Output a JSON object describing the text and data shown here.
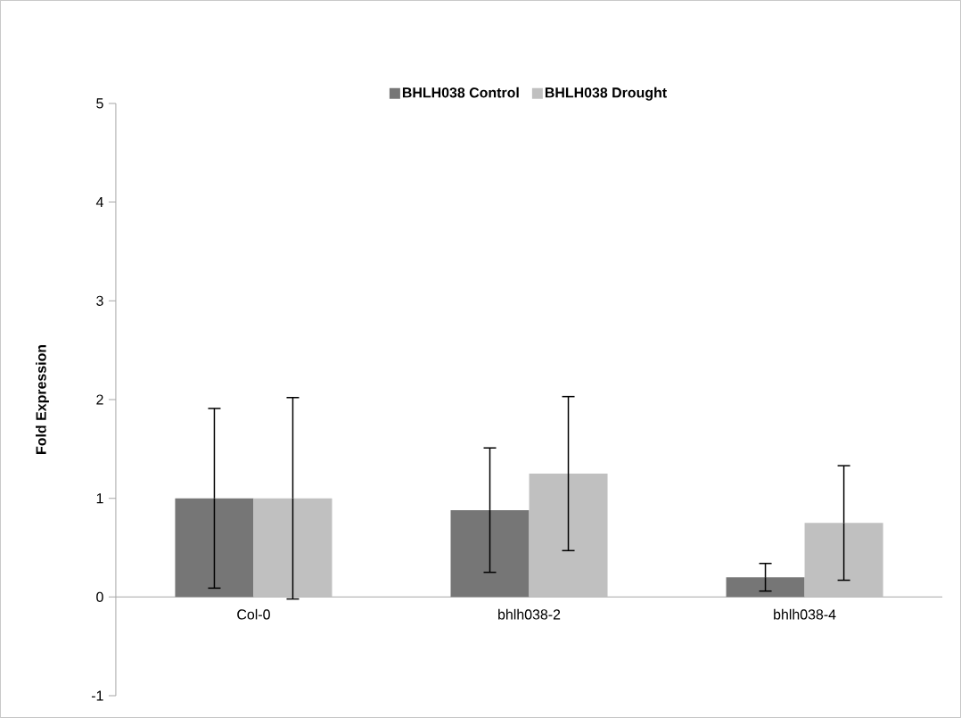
{
  "chart_data": {
    "type": "bar",
    "ylabel": "Fold Expression",
    "categories": [
      "Col-0",
      "bhlh038-2",
      "bhlh038-4"
    ],
    "series": [
      {
        "name": "BHLH038 Control",
        "color": "#767676",
        "values": [
          1.0,
          0.88,
          0.2
        ],
        "errors": [
          0.91,
          0.63,
          0.14
        ]
      },
      {
        "name": "BHLH038 Drought",
        "color": "#c0c0c0",
        "values": [
          1.0,
          1.25,
          0.75
        ],
        "errors": [
          1.02,
          0.78,
          0.58
        ]
      }
    ],
    "ylim": [
      -1,
      5
    ],
    "yticks": [
      -1,
      0,
      1,
      2,
      3,
      4,
      5
    ],
    "legend": "top",
    "grid": false
  }
}
